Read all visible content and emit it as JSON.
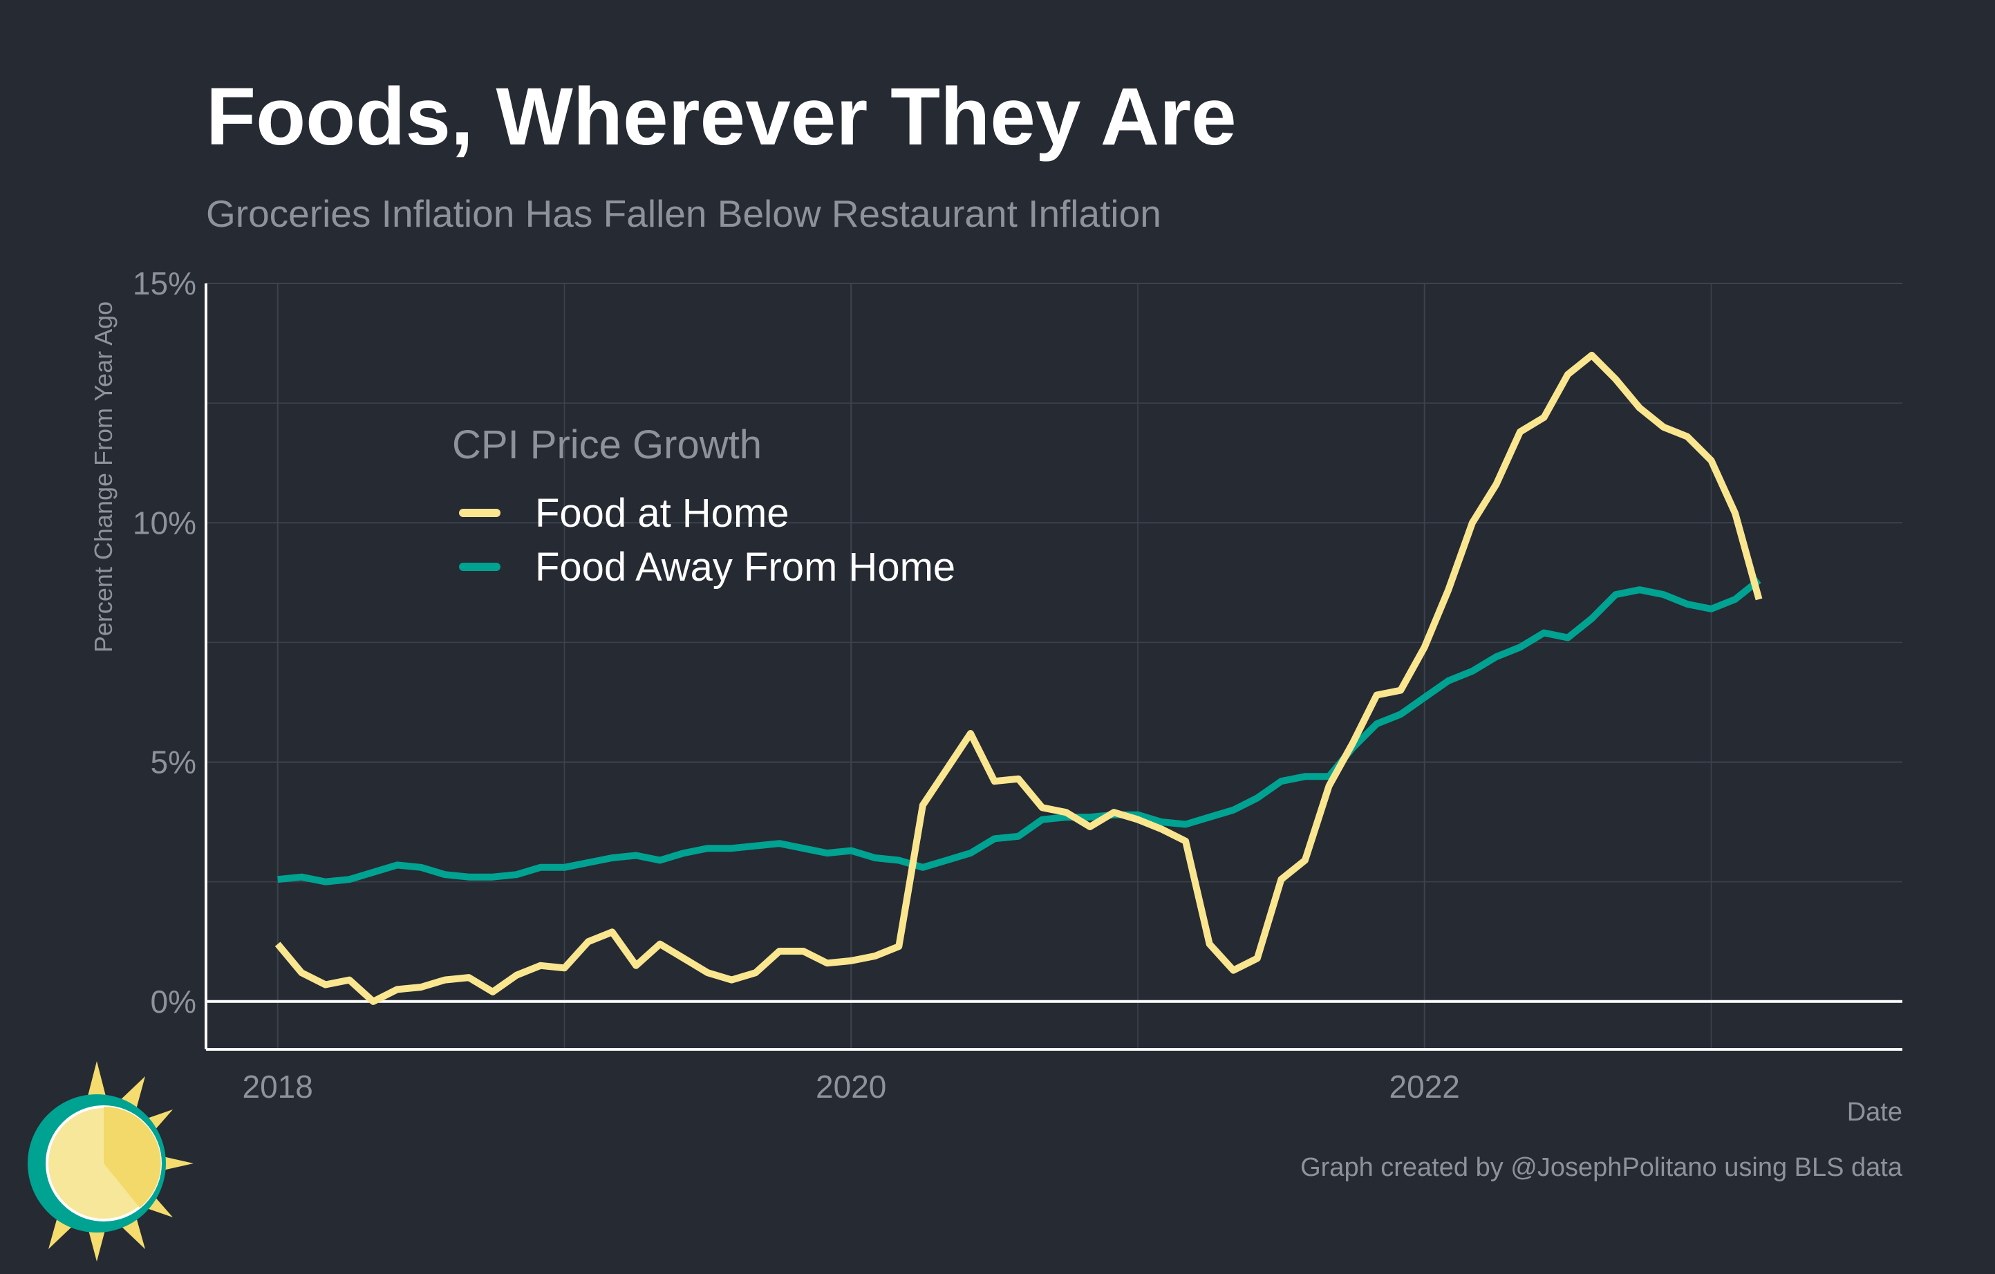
{
  "title": "Foods, Wherever They Are",
  "subtitle": "Groceries Inflation Has Fallen Below Restaurant Inflation",
  "caption": "Graph created by @JosephPolitano using BLS data",
  "colors": {
    "background": "#252a33",
    "food_at_home": "#fbe690",
    "food_away": "#00a291",
    "grid": "#3d434d",
    "axis": "#ffffff"
  },
  "legend": {
    "title": "CPI Price Growth",
    "placement": "upper-left"
  },
  "chart_data": {
    "type": "line",
    "xlabel": "Date",
    "ylabel": "Percent Change From Year Ago",
    "x_ticks": [
      "2018",
      "2020",
      "2022"
    ],
    "y_ticks": [
      "0%",
      "5%",
      "10%",
      "15%"
    ],
    "ylim": [
      -1,
      15
    ],
    "xlim": [
      "2017-10",
      "2023-09"
    ],
    "grid": true,
    "x": [
      "2018-01",
      "2018-02",
      "2018-03",
      "2018-04",
      "2018-05",
      "2018-06",
      "2018-07",
      "2018-08",
      "2018-09",
      "2018-10",
      "2018-11",
      "2018-12",
      "2019-01",
      "2019-02",
      "2019-03",
      "2019-04",
      "2019-05",
      "2019-06",
      "2019-07",
      "2019-08",
      "2019-09",
      "2019-10",
      "2019-11",
      "2019-12",
      "2020-01",
      "2020-02",
      "2020-03",
      "2020-04",
      "2020-05",
      "2020-06",
      "2020-07",
      "2020-08",
      "2020-09",
      "2020-10",
      "2020-11",
      "2020-12",
      "2021-01",
      "2021-02",
      "2021-03",
      "2021-04",
      "2021-05",
      "2021-06",
      "2021-07",
      "2021-08",
      "2021-09",
      "2021-10",
      "2021-11",
      "2021-12",
      "2022-01",
      "2022-02",
      "2022-03",
      "2022-04",
      "2022-05",
      "2022-06",
      "2022-07",
      "2022-08",
      "2022-09",
      "2022-10",
      "2022-11",
      "2022-12",
      "2023-01",
      "2023-02",
      "2023-03"
    ],
    "series": [
      {
        "name": "Food at Home",
        "color": "#fbe690",
        "values": [
          1.2,
          0.6,
          0.35,
          0.45,
          0.0,
          0.25,
          0.3,
          0.45,
          0.5,
          0.2,
          0.55,
          0.75,
          0.7,
          1.25,
          1.45,
          0.75,
          1.2,
          0.9,
          0.6,
          0.45,
          0.6,
          1.05,
          1.05,
          0.8,
          0.85,
          0.95,
          1.15,
          4.1,
          4.85,
          5.6,
          4.6,
          4.65,
          4.05,
          3.95,
          3.65,
          3.95,
          3.8,
          3.6,
          3.35,
          1.2,
          0.65,
          0.9,
          2.55,
          2.95,
          4.5,
          5.4,
          6.4,
          6.5,
          7.4,
          8.6,
          10.0,
          10.8,
          11.9,
          12.2,
          13.1,
          13.5,
          13.0,
          12.4,
          12.0,
          11.8,
          11.3,
          10.2,
          8.4
        ]
      },
      {
        "name": "Food Away From Home",
        "color": "#00a291",
        "values": [
          2.55,
          2.6,
          2.5,
          2.55,
          2.7,
          2.85,
          2.8,
          2.65,
          2.6,
          2.6,
          2.65,
          2.8,
          2.8,
          2.9,
          3.0,
          3.05,
          2.95,
          3.1,
          3.2,
          3.2,
          3.25,
          3.3,
          3.2,
          3.1,
          3.15,
          3.0,
          2.95,
          2.8,
          2.95,
          3.1,
          3.4,
          3.45,
          3.8,
          3.85,
          3.85,
          3.9,
          3.9,
          3.75,
          3.7,
          3.85,
          4.0,
          4.25,
          4.6,
          4.7,
          4.7,
          5.3,
          5.8,
          6.0,
          6.35,
          6.7,
          6.9,
          7.2,
          7.4,
          7.7,
          7.6,
          8.0,
          8.5,
          8.6,
          8.5,
          8.3,
          8.2,
          8.4,
          8.8
        ]
      }
    ]
  }
}
